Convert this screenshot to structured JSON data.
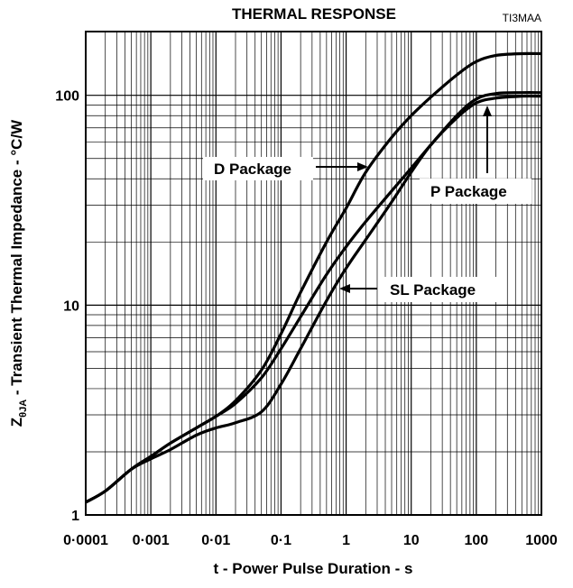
{
  "chart_data": {
    "type": "line",
    "title": "THERMAL RESPONSE",
    "figure_code": "TI3MAA",
    "xlabel": "t - Power Pulse Duration - s",
    "ylabel_main": "Z",
    "ylabel_sub": "θJA",
    "ylabel_rest": " - Transient Thermal Impedance - °C/W",
    "x_scale": "log",
    "y_scale": "log",
    "xlim": [
      0.0001,
      1000
    ],
    "ylim": [
      1,
      200
    ],
    "grid": true,
    "x_ticks": [
      {
        "value": 0.0001,
        "label": "0·0001"
      },
      {
        "value": 0.001,
        "label": "0·001"
      },
      {
        "value": 0.01,
        "label": "0·01"
      },
      {
        "value": 0.1,
        "label": "0·1"
      },
      {
        "value": 1,
        "label": "1"
      },
      {
        "value": 10,
        "label": "10"
      },
      {
        "value": 100,
        "label": "100"
      },
      {
        "value": 1000,
        "label": "1000"
      }
    ],
    "y_ticks": [
      {
        "value": 1,
        "label": "1"
      },
      {
        "value": 10,
        "label": "10"
      },
      {
        "value": 100,
        "label": "100"
      }
    ],
    "series": [
      {
        "name": "D Package",
        "x": [
          0.0001,
          0.0002,
          0.0005,
          0.001,
          0.002,
          0.005,
          0.01,
          0.02,
          0.05,
          0.1,
          0.2,
          0.5,
          1,
          2,
          5,
          10,
          20,
          50,
          100,
          200,
          500,
          1000
        ],
        "y": [
          1.15,
          1.3,
          1.65,
          1.9,
          2.2,
          2.6,
          2.95,
          3.5,
          4.9,
          7.3,
          11.5,
          20,
          29,
          43,
          63,
          80,
          98,
          125,
          145,
          155,
          158,
          158
        ]
      },
      {
        "name": "P Package",
        "x": [
          0.0001,
          0.0002,
          0.0005,
          0.001,
          0.002,
          0.005,
          0.01,
          0.02,
          0.05,
          0.1,
          0.2,
          0.5,
          1,
          2,
          5,
          10,
          20,
          50,
          100,
          200,
          500,
          1000
        ],
        "y": [
          1.15,
          1.3,
          1.65,
          1.9,
          2.2,
          2.6,
          2.95,
          3.4,
          4.5,
          6.2,
          8.8,
          14,
          19,
          25,
          35,
          45,
          58,
          80,
          96,
          102,
          103,
          103
        ]
      },
      {
        "name": "SL Package",
        "x": [
          0.0001,
          0.0002,
          0.0005,
          0.001,
          0.002,
          0.005,
          0.01,
          0.02,
          0.05,
          0.1,
          0.2,
          0.5,
          1,
          2,
          5,
          10,
          20,
          50,
          100,
          200,
          500,
          1000
        ],
        "y": [
          1.15,
          1.3,
          1.65,
          1.85,
          2.05,
          2.4,
          2.6,
          2.75,
          3.1,
          4.2,
          6.2,
          10.5,
          15,
          20.5,
          31,
          43,
          58,
          78,
          92,
          97,
          99,
          99
        ]
      }
    ],
    "annotations": [
      {
        "text": "D Package",
        "series": "D Package",
        "label_side": "left"
      },
      {
        "text": "P Package",
        "series": "P Package",
        "label_side": "below"
      },
      {
        "text": "SL Package",
        "series": "SL Package",
        "label_side": "right"
      }
    ]
  }
}
